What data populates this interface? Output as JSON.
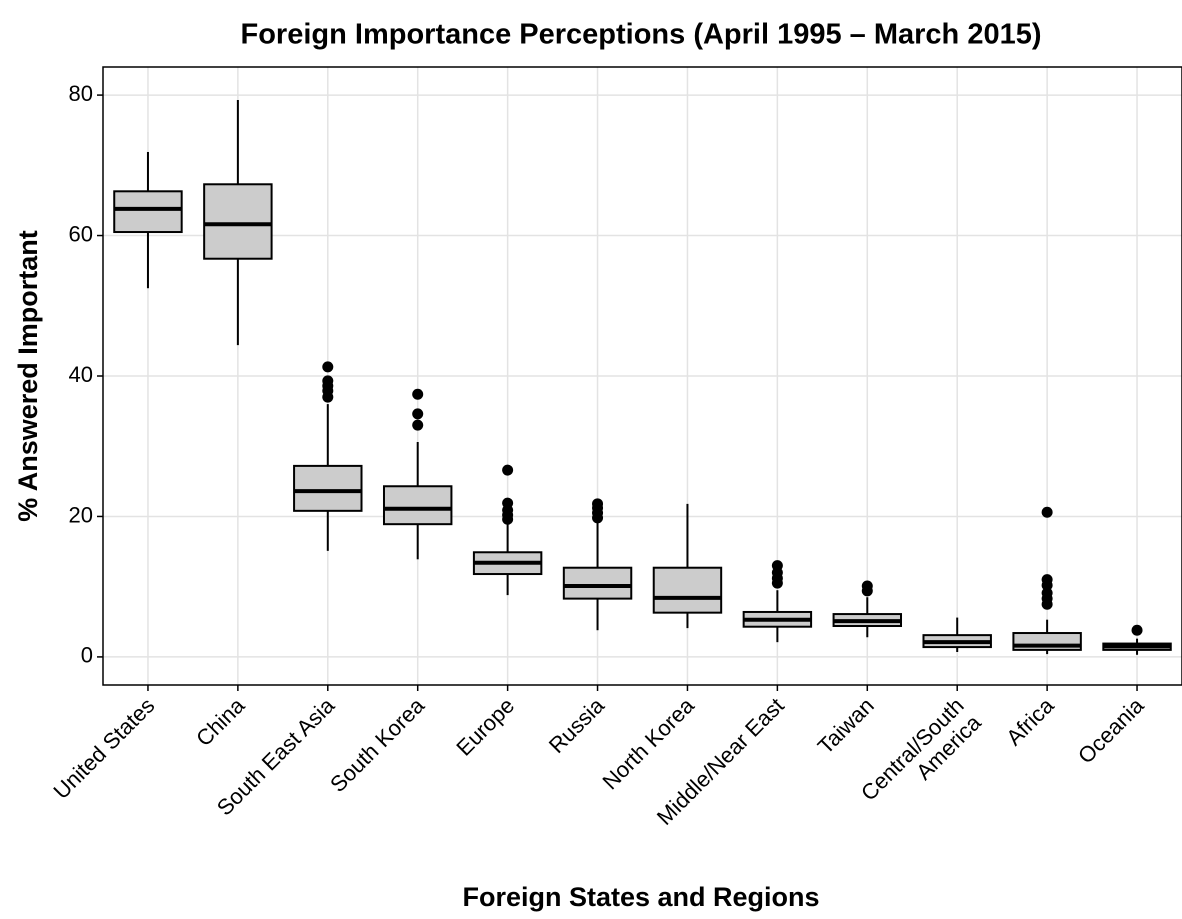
{
  "chart_data": {
    "type": "box",
    "title": "Foreign Importance Perceptions (April 1995 – March 2015)",
    "x_label": "Foreign States and Regions",
    "y_label": "% Answered Important",
    "categories": [
      "United States",
      "China",
      "South East Asia",
      "South Korea",
      "Europe",
      "Russia",
      "North Korea",
      "Middle/Near East",
      "Taiwan",
      "Central/South\nAmerica",
      "Africa",
      "Oceania"
    ],
    "boxes": [
      {
        "min": 52.5,
        "q1": 60.5,
        "median": 63.8,
        "q3": 66.3,
        "max": 71.9,
        "outliers": []
      },
      {
        "min": 44.4,
        "q1": 56.7,
        "median": 61.6,
        "q3": 67.3,
        "max": 79.3,
        "outliers": []
      },
      {
        "min": 15.1,
        "q1": 20.8,
        "median": 23.6,
        "q3": 27.2,
        "max": 36.0,
        "outliers": [
          37.0,
          37.9,
          38.6,
          39.3,
          41.3
        ]
      },
      {
        "min": 13.9,
        "q1": 18.9,
        "median": 21.1,
        "q3": 24.3,
        "max": 30.6,
        "outliers": [
          33.0,
          34.6,
          37.4
        ]
      },
      {
        "min": 8.8,
        "q1": 11.8,
        "median": 13.4,
        "q3": 14.9,
        "max": 19.0,
        "outliers": [
          19.6,
          20.2,
          20.9,
          21.9,
          26.6
        ]
      },
      {
        "min": 3.8,
        "q1": 8.3,
        "median": 10.1,
        "q3": 12.7,
        "max": 19.5,
        "outliers": [
          19.8,
          20.5,
          21.2,
          21.8
        ]
      },
      {
        "min": 4.1,
        "q1": 6.3,
        "median": 8.4,
        "q3": 12.7,
        "max": 21.8,
        "outliers": []
      },
      {
        "min": 2.1,
        "q1": 4.3,
        "median": 5.3,
        "q3": 6.4,
        "max": 9.5,
        "outliers": [
          10.5,
          11.2,
          12.0,
          13.0
        ]
      },
      {
        "min": 2.8,
        "q1": 4.4,
        "median": 5.1,
        "q3": 6.1,
        "max": 8.5,
        "outliers": [
          9.4,
          10.1
        ]
      },
      {
        "min": 0.7,
        "q1": 1.4,
        "median": 2.1,
        "q3": 3.1,
        "max": 5.6,
        "outliers": []
      },
      {
        "min": 0.4,
        "q1": 1.0,
        "median": 1.6,
        "q3": 3.4,
        "max": 5.3,
        "outliers": [
          7.5,
          8.3,
          9.1,
          10.2,
          11.0,
          20.6
        ]
      },
      {
        "min": 0.3,
        "q1": 1.0,
        "median": 1.5,
        "q3": 1.9,
        "max": 2.6,
        "outliers": [
          3.8
        ]
      }
    ],
    "color": "#cccccc",
    "ylim": [
      -4,
      84
    ],
    "yticks": [
      0,
      20,
      40,
      60,
      80
    ],
    "grid": true
  }
}
